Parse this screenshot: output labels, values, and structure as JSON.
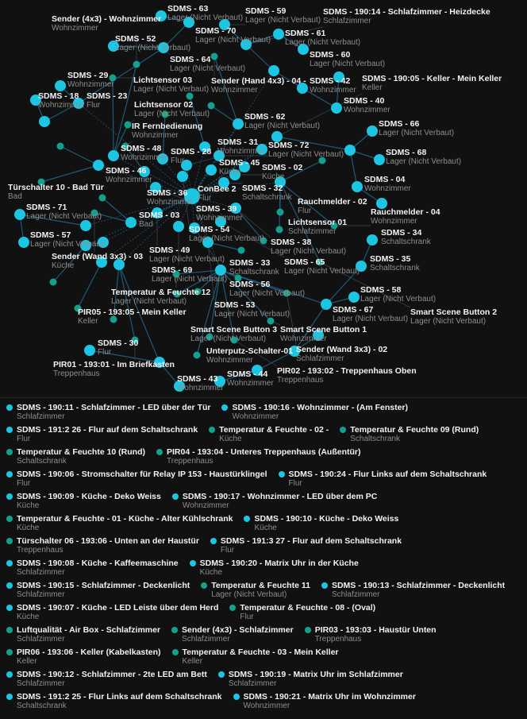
{
  "colors": {
    "background": "#111112",
    "router": "#1cc6e3",
    "end_device": "#13a08e",
    "link": "#1f5a78"
  },
  "nodes": [
    {
      "name": "SDMS - 63",
      "room": "Lager (Nicht Verbaut)",
      "kind": "router"
    },
    {
      "name": "SDMS - 70",
      "room": "Lager (Nicht Verbaut)",
      "kind": "router"
    },
    {
      "name": "SDMS - 59",
      "room": "Lager (Nicht Verbaut)",
      "kind": "router"
    },
    {
      "name": "SDMS - 61",
      "room": "Lager (Nicht Verbaut)",
      "kind": "router"
    },
    {
      "name": "SDMS - 190:14 - Schlafzimmer - Heizdecke",
      "room": "Schlafzimmer",
      "kind": "router"
    },
    {
      "name": "SDMS - 60",
      "room": "Lager (Nicht Verbaut)",
      "kind": "router"
    },
    {
      "name": "SDMS - 52",
      "room": "Lager (Nicht Verbaut)",
      "kind": "router"
    },
    {
      "name": "SDMS - 64",
      "room": "Lager (Nicht Verbaut)",
      "kind": "router"
    },
    {
      "name": "Sender (Hand 4x3) - 04 -",
      "room": "Wohnzimmer",
      "kind": "end"
    },
    {
      "name": "Sender (4x3) - Wohnzimmer",
      "room": "Wohnzimmer",
      "kind": "end"
    },
    {
      "name": "Lichtsensor 03",
      "room": "Lager (Nicht Verbaut)",
      "kind": "end"
    },
    {
      "name": "SDMS - 190:11 - Schlafzimmer - LED über der Tür",
      "room": "Schlafzimmer",
      "kind": "router"
    },
    {
      "name": "SDMS - 190:16 - Wohnzimmer - (Am Fenster)",
      "room": "Wohnzimmer",
      "kind": "router"
    },
    {
      "name": "SDMS - 42",
      "room": "Wohnzimmer",
      "kind": "router"
    },
    {
      "name": "SDMS - 40",
      "room": "Wohnzimmer",
      "kind": "router"
    },
    {
      "name": "SDMS - 29",
      "room": "Wohnzimmer",
      "kind": "router"
    },
    {
      "name": "SDMS - 18",
      "room": "Wohnzimmer",
      "kind": "router"
    },
    {
      "name": "SDMS - 23",
      "room": "Flur",
      "kind": "router"
    },
    {
      "name": "SDMS - 191:2 26 - Flur auf dem Schaltschrank",
      "room": "Flur",
      "kind": "router"
    },
    {
      "name": "Temperatur & Feuchte - 02 -",
      "room": "Küche",
      "kind": "end"
    },
    {
      "name": "Temperatur & Feuchte 09 (Rund)",
      "room": "Schaltschrank",
      "kind": "end"
    },
    {
      "name": "Temperatur & Feuchte 10 (Rund)",
      "room": "Schaltschrank",
      "kind": "end"
    },
    {
      "name": "Lichtsensor 02",
      "room": "Lager (Nicht Verbaut)",
      "kind": "end"
    },
    {
      "name": "SDMS - 62",
      "room": "Lager (Nicht Verbaut)",
      "kind": "router"
    },
    {
      "name": "SDMS - 66",
      "room": "Lager (Nicht Verbaut)",
      "kind": "router"
    },
    {
      "name": "PIR04 - 193:04 - Unteres Treppenhaus (Außentür)",
      "room": "Treppenhaus",
      "kind": "end"
    },
    {
      "name": "IR Fernbedienung",
      "room": "Wohnzimmer",
      "kind": "end"
    },
    {
      "name": "SDMS - 190:06 - Stromschalter für Relay IP 153 - Haustürklingel",
      "room": "Flur",
      "kind": "router"
    },
    {
      "name": "SDMS - 190:05 - Keller - Mein Keller",
      "room": "Keller",
      "kind": "router"
    },
    {
      "name": "SDMS - 190:24 - Flur Links auf dem Schaltschrank",
      "room": "Flur",
      "kind": "router"
    },
    {
      "name": "SDMS - 48",
      "room": "Wohnzimmer",
      "kind": "router"
    },
    {
      "name": "SDMS - 46",
      "room": "Wohnzimmer",
      "kind": "router"
    },
    {
      "name": "SDMS - 28",
      "room": "Flur",
      "kind": "router"
    },
    {
      "name": "SDMS - 31",
      "room": "Wohnzimmer",
      "kind": "router"
    },
    {
      "name": "SDMS - 72",
      "room": "Lager (Nicht Verbaut)",
      "kind": "router"
    },
    {
      "name": "SDMS - 36",
      "room": "Wohnzimmer",
      "kind": "router"
    },
    {
      "name": "SDMS - 54",
      "room": "Lager (Nicht Verbaut)",
      "kind": "router"
    },
    {
      "name": "SDMS - 190:09 - Küche - Deko Weiss",
      "room": "Küche",
      "kind": "router"
    },
    {
      "name": "SDMS - 190:17 - Wohnzimmer - LED über dem PC",
      "room": "Wohnzimmer",
      "kind": "router"
    },
    {
      "name": "SDMS - 45",
      "room": "Küche",
      "kind": "router"
    },
    {
      "name": "Temperatur & Feuchte - 01 - Küche - Alter Kühlschrank",
      "room": "Küche",
      "kind": "end"
    },
    {
      "name": "SDMS - 68",
      "room": "Lager (Nicht Verbaut)",
      "kind": "router"
    },
    {
      "name": "SDMS - 02",
      "room": "Küche",
      "kind": "router"
    },
    {
      "name": "SDMS - 190:10 - Küche - Deko Weiss",
      "room": "Küche",
      "kind": "router"
    },
    {
      "name": "SDMS - 04",
      "room": "Wohnzimmer",
      "kind": "router"
    },
    {
      "name": "Türschalter 06 - 193:06 - Unten an der Haustür",
      "room": "Treppenhaus",
      "kind": "end"
    },
    {
      "name": "SDMS - 39",
      "room": "Wohnzimmer",
      "kind": "router"
    },
    {
      "name": "ConBee 2",
      "room": "Flur",
      "kind": "coordinator"
    },
    {
      "name": "SDMS - 32",
      "room": "Schaltschrank",
      "kind": "router"
    },
    {
      "name": "SDMS - 191:3 27 - Flur auf dem Schaltschrank",
      "room": "Flur",
      "kind": "router"
    },
    {
      "name": "Türschalter 10 - Bad Tür",
      "room": "Bad",
      "kind": "end"
    },
    {
      "name": "SDMS - 38",
      "room": "Lager (Nicht Verbaut)",
      "kind": "router"
    },
    {
      "name": "Rauchmelder - 02",
      "room": "Flur",
      "kind": "end"
    },
    {
      "name": "SDMS - 71",
      "room": "Lager (Nicht Verbaut)",
      "kind": "router"
    },
    {
      "name": "Sender (Wand 3x3) - 03",
      "room": "Küche",
      "kind": "end"
    },
    {
      "name": "SDMS - 49",
      "room": "Lager (Nicht Verbaut)",
      "kind": "router"
    },
    {
      "name": "Rauchmelder - 04",
      "room": "Wohnzimmer",
      "kind": "end"
    },
    {
      "name": "SDMS - 65",
      "room": "Lager (Nicht Verbaut)",
      "kind": "router"
    },
    {
      "name": "Lichtsensor 01",
      "room": "Schlafzimmer",
      "kind": "end"
    },
    {
      "name": "SDMS - 03",
      "room": "Bad",
      "kind": "router"
    },
    {
      "name": "SDMS - 190:08 - Küche - Kaffeemaschine",
      "room": "Schlafzimmer",
      "kind": "router"
    },
    {
      "name": "SDMS - 69",
      "room": "Lager (Nicht Verbaut)",
      "kind": "router"
    },
    {
      "name": "SDMS - 56",
      "room": "Lager (Nicht Verbaut)",
      "kind": "router"
    },
    {
      "name": "SDMS - 57",
      "room": "Lager (Nicht Verbaut)",
      "kind": "router"
    },
    {
      "name": "SDMS - 190:20 - Matrix Uhr in der Küche",
      "room": "Küche",
      "kind": "router"
    },
    {
      "name": "SDMS - 190:15 - Schlafzimmer - Deckenlicht",
      "room": "Schlafzimmer",
      "kind": "router"
    },
    {
      "name": "SDMS - 53",
      "room": "Lager (Nicht Verbaut)",
      "kind": "router"
    },
    {
      "name": "SDMS - 34",
      "room": "Schaltschrank",
      "kind": "router"
    },
    {
      "name": "Temperatur & Feuchte 11",
      "room": "Lager (Nicht Verbaut)",
      "kind": "end"
    },
    {
      "name": "SDMS - 190:13 - Schlafzimmer - Deckenlicht",
      "room": "Schlafzimmer",
      "kind": "router"
    },
    {
      "name": "SDMS - 190:07 - Küche - LED Leiste über dem Herd",
      "room": "Küche",
      "kind": "router"
    },
    {
      "name": "Temperatur & Feuchte - 08 - (Oval)",
      "room": "Flur",
      "kind": "end"
    },
    {
      "name": "Smart Scene Button 2",
      "room": "Lager (Nicht Verbaut)",
      "kind": "end"
    },
    {
      "name": "SDMS - 35",
      "room": "Schaltschrank",
      "kind": "router"
    },
    {
      "name": "Temperatur & Feuchte 12",
      "room": "Lager (Nicht Verbaut)",
      "kind": "end"
    },
    {
      "name": "SDMS - 33",
      "room": "Schaltschrank",
      "kind": "router"
    },
    {
      "name": "Luftqualität - Air Box - Schlafzimmer",
      "room": "Schlafzimmer",
      "kind": "end"
    },
    {
      "name": "Sender (4x3) - Schlafzimmer",
      "room": "Schlafzimmer",
      "kind": "end"
    },
    {
      "name": "PIR03 - 193:03 - Haustür Unten",
      "room": "Treppenhaus",
      "kind": "end"
    },
    {
      "name": "PIR06 - 193:06 - Keller (Kabelkasten)",
      "room": "Keller",
      "kind": "end"
    },
    {
      "name": "Sender (Wand 3x3) - 02",
      "room": "Schlafzimmer",
      "kind": "end"
    },
    {
      "name": "SDMS - 58",
      "room": "Lager (Nicht Verbaut)",
      "kind": "router"
    },
    {
      "name": "SDMS - 67",
      "room": "Lager (Nicht Verbaut)",
      "kind": "router"
    },
    {
      "name": "Temperatur & Feuchte - 03 - Mein Keller",
      "room": "Keller",
      "kind": "end"
    },
    {
      "name": "Smart Scene Button 1",
      "room": "Wohnzimmer",
      "kind": "end"
    },
    {
      "name": "PIR05 - 193:05 - Mein Keller",
      "room": "Keller",
      "kind": "end"
    },
    {
      "name": "PIR01 - 193:01 - Im Briefkasten",
      "room": "Treppenhaus",
      "kind": "end"
    },
    {
      "name": "Smart Scene Button 3",
      "room": "Lager (Nicht Verbaut)",
      "kind": "end"
    },
    {
      "name": "PIR02 - 193:02 - Treppenhaus Oben",
      "room": "Treppenhaus",
      "kind": "end"
    },
    {
      "name": "SDMS - 190:12 - Schlafzimmer - 2te LED am Bett",
      "room": "Schlafzimmer",
      "kind": "router"
    },
    {
      "name": "SDMS - 30",
      "room": "Flur",
      "kind": "router"
    },
    {
      "name": "SDMS - 190:19 - Matrix Uhr im Schlafzimmer",
      "room": "Schlafzimmer",
      "kind": "router"
    },
    {
      "name": "Unterputz-Schalter-01",
      "room": "Wohnzimmer",
      "kind": "end"
    },
    {
      "name": "SDMS - 191:2 25 - Flur Links auf dem Schaltschrank",
      "room": "Schaltschrank",
      "kind": "router"
    },
    {
      "name": "SDMS - 190:21 - Matrix Uhr im Wohnzimmer",
      "room": "Wohnzimmer",
      "kind": "router"
    },
    {
      "name": "SDMS - 44",
      "room": "Wohnzimmer",
      "kind": "router"
    },
    {
      "name": "SDMS - 43",
      "room": "Wohnzimmer",
      "kind": "router"
    }
  ]
}
